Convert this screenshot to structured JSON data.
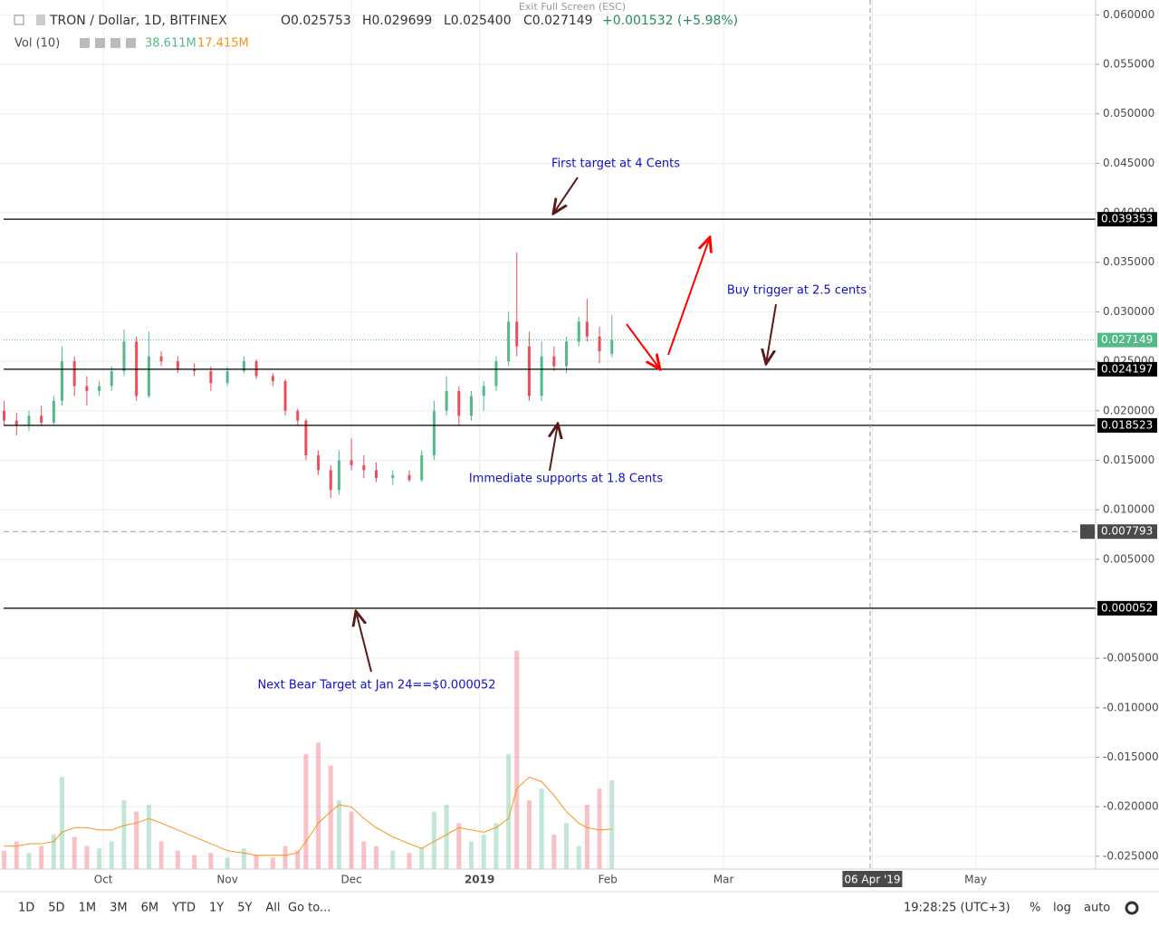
{
  "header": {
    "symbol": "TRON / Dollar, 1D, BITFINEX",
    "open": "O0.025753",
    "high": "H0.029699",
    "low": "L0.025400",
    "close": "C0.027149",
    "change": "+0.001532 (+5.98%)",
    "volume_label": "Vol (10)",
    "volume": "38.611M",
    "volume_ma": "17.415M",
    "exit": "Exit Full Screen (ESC)"
  },
  "toolbar": {
    "ranges": [
      "1D",
      "5D",
      "1M",
      "3M",
      "6M",
      "YTD",
      "1Y",
      "5Y",
      "All"
    ],
    "goto": "Go to...",
    "time": "19:28:25 (UTC+3)",
    "percent": "%",
    "log": "log",
    "auto": "auto"
  },
  "chart_data": {
    "type": "candlestick",
    "xlim": [
      -1,
      264
    ],
    "xticks": [
      {
        "value": 24,
        "label": "Oct"
      },
      {
        "value": 54,
        "label": "Nov"
      },
      {
        "value": 84,
        "label": "Dec"
      },
      {
        "value": 115,
        "label": "2019"
      },
      {
        "value": 146,
        "label": "Feb"
      },
      {
        "value": 174,
        "label": "Mar"
      },
      {
        "value": 210,
        "label": "06 Apr '19"
      },
      {
        "value": 235,
        "label": "May"
      }
    ],
    "ylim": [
      -0.0263,
      0.0615
    ],
    "yticks": [
      {
        "value": 0.06,
        "label": "0.060000"
      },
      {
        "value": 0.055,
        "label": "0.055000"
      },
      {
        "value": 0.05,
        "label": "0.050000"
      },
      {
        "value": 0.045,
        "label": "0.045000"
      },
      {
        "value": 0.04,
        "label": "0.040000"
      },
      {
        "value": 0.035,
        "label": "0.035000"
      },
      {
        "value": 0.03,
        "label": "0.030000"
      },
      {
        "value": 0.025,
        "label": "0.025000"
      },
      {
        "value": 0.02,
        "label": "0.020000"
      },
      {
        "value": 0.015,
        "label": "0.015000"
      },
      {
        "value": 0.01,
        "label": "0.010000"
      },
      {
        "value": 0.005,
        "label": "0.005000"
      },
      {
        "value": 0,
        "label": "0.000000"
      },
      {
        "value": -0.005,
        "label": "-0.005000"
      },
      {
        "value": -0.01,
        "label": "-0.010000"
      },
      {
        "value": -0.015,
        "label": "-0.015000"
      },
      {
        "value": -0.02,
        "label": "-0.020000"
      },
      {
        "value": -0.025,
        "label": "-0.025000"
      }
    ],
    "grid": true,
    "up_color": "#53b987",
    "down_color": "#eb4d5c",
    "x": [
      0,
      3,
      6,
      9,
      12,
      14,
      17,
      20,
      23,
      26,
      29,
      32,
      35,
      38,
      42,
      46,
      50,
      54,
      58,
      61,
      65,
      68,
      71,
      73,
      76,
      79,
      81,
      84,
      87,
      90,
      94,
      98,
      101,
      104,
      107,
      110,
      113,
      116,
      119,
      122,
      124,
      127,
      130,
      133,
      136,
      139,
      141,
      144,
      147
    ],
    "ohlc": [
      [
        0.02,
        0.021,
        0.0185,
        0.019
      ],
      [
        0.019,
        0.0198,
        0.0175,
        0.0185
      ],
      [
        0.0185,
        0.02,
        0.018,
        0.0195
      ],
      [
        0.0195,
        0.0205,
        0.0185,
        0.0188
      ],
      [
        0.0188,
        0.0215,
        0.0186,
        0.021
      ],
      [
        0.021,
        0.0265,
        0.0205,
        0.025
      ],
      [
        0.025,
        0.0255,
        0.0215,
        0.0225
      ],
      [
        0.0225,
        0.0235,
        0.0205,
        0.022
      ],
      [
        0.022,
        0.023,
        0.0215,
        0.0225
      ],
      [
        0.0225,
        0.0245,
        0.022,
        0.024
      ],
      [
        0.024,
        0.0282,
        0.0235,
        0.027
      ],
      [
        0.027,
        0.0275,
        0.021,
        0.0215
      ],
      [
        0.0215,
        0.028,
        0.0213,
        0.0255
      ],
      [
        0.0255,
        0.026,
        0.0245,
        0.025
      ],
      [
        0.025,
        0.0255,
        0.0238,
        0.0242
      ],
      [
        0.0242,
        0.0248,
        0.0235,
        0.024
      ],
      [
        0.024,
        0.0245,
        0.022,
        0.0228
      ],
      [
        0.0228,
        0.0245,
        0.0225,
        0.024
      ],
      [
        0.024,
        0.0255,
        0.0238,
        0.025
      ],
      [
        0.025,
        0.0252,
        0.0232,
        0.0235
      ],
      [
        0.0235,
        0.0238,
        0.0225,
        0.023
      ],
      [
        0.023,
        0.0232,
        0.0195,
        0.02
      ],
      [
        0.02,
        0.0202,
        0.0185,
        0.019
      ],
      [
        0.019,
        0.0192,
        0.015,
        0.0155
      ],
      [
        0.0155,
        0.016,
        0.0135,
        0.014
      ],
      [
        0.014,
        0.0145,
        0.0112,
        0.012
      ],
      [
        0.012,
        0.016,
        0.0115,
        0.015
      ],
      [
        0.015,
        0.0172,
        0.014,
        0.0145
      ],
      [
        0.0145,
        0.0155,
        0.0132,
        0.014
      ],
      [
        0.014,
        0.0148,
        0.0128,
        0.0132
      ],
      [
        0.0132,
        0.014,
        0.0125,
        0.0135
      ],
      [
        0.0135,
        0.014,
        0.0128,
        0.013
      ],
      [
        0.013,
        0.016,
        0.0128,
        0.0155
      ],
      [
        0.0155,
        0.021,
        0.015,
        0.02
      ],
      [
        0.02,
        0.0235,
        0.0195,
        0.022
      ],
      [
        0.022,
        0.0225,
        0.0185,
        0.0195
      ],
      [
        0.0195,
        0.022,
        0.019,
        0.0215
      ],
      [
        0.0215,
        0.023,
        0.02,
        0.0225
      ],
      [
        0.0225,
        0.0255,
        0.022,
        0.025
      ],
      [
        0.025,
        0.03,
        0.0245,
        0.029
      ],
      [
        0.029,
        0.036,
        0.0255,
        0.0265
      ],
      [
        0.0265,
        0.028,
        0.021,
        0.0215
      ],
      [
        0.0215,
        0.027,
        0.021,
        0.0255
      ],
      [
        0.0255,
        0.0265,
        0.024,
        0.0245
      ],
      [
        0.0245,
        0.0275,
        0.0238,
        0.027
      ],
      [
        0.027,
        0.0295,
        0.0265,
        0.029
      ],
      [
        0.029,
        0.0313,
        0.027,
        0.0275
      ],
      [
        0.0275,
        0.0285,
        0.0248,
        0.026
      ],
      [
        0.025753,
        0.029699,
        0.0254,
        0.027149
      ]
    ],
    "volume": [
      8,
      12,
      7,
      10,
      15,
      40,
      14,
      10,
      9,
      12,
      30,
      25,
      28,
      12,
      8,
      6,
      7,
      5,
      9,
      6,
      5,
      10,
      8,
      50,
      55,
      45,
      30,
      25,
      12,
      10,
      8,
      7,
      9,
      25,
      28,
      20,
      12,
      15,
      20,
      50,
      95,
      30,
      35,
      15,
      20,
      10,
      28,
      35,
      38.611
    ],
    "volume_ma": [
      10,
      10,
      11,
      11,
      12,
      16,
      18,
      18,
      17,
      17,
      19,
      20,
      22,
      20,
      17,
      14,
      11,
      8,
      7,
      6,
      6,
      6,
      7,
      12,
      20,
      25,
      28,
      27,
      22,
      18,
      14,
      11,
      9,
      12,
      15,
      18,
      17,
      16,
      18,
      22,
      35,
      40,
      38,
      32,
      25,
      20,
      18,
      17,
      17.415
    ],
    "price_lines": [
      {
        "value": 0.039353,
        "style": "solid"
      },
      {
        "value": 0.027149,
        "style": "dotted"
      },
      {
        "value": 0.024197,
        "style": "solid"
      },
      {
        "value": 0.018523,
        "style": "solid"
      },
      {
        "value": 0.007793,
        "style": "dashed"
      },
      {
        "value": 5.2e-05,
        "style": "solid"
      }
    ],
    "annotations": [
      "First target at 4 Cents",
      "Buy trigger at 2.5 cents",
      "Immediate supports at 1.8 Cents",
      "Next Bear Target at Jan 24==$0.000052"
    ]
  }
}
